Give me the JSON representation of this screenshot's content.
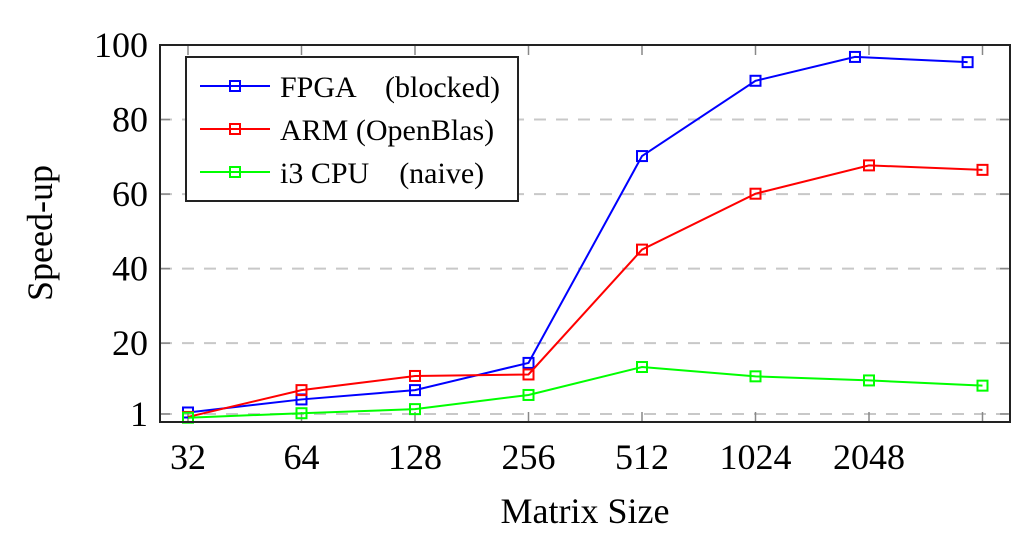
{
  "chart_data": {
    "type": "line",
    "title": "",
    "xlabel": "Matrix Size",
    "ylabel": "Speed-up",
    "x_scale": "log2",
    "x_ticks": [
      32,
      64,
      128,
      256,
      512,
      1024,
      2048,
      4096
    ],
    "x_tick_labels": [
      "32",
      "64",
      "128",
      "256",
      "512",
      "1024",
      "2048",
      ""
    ],
    "y_ticks": [
      1,
      20,
      40,
      60,
      80,
      100
    ],
    "y_tick_labels": [
      "1",
      "20",
      "40",
      "60",
      "80",
      "100"
    ],
    "ylim": [
      -1,
      100
    ],
    "xlim": [
      27,
      4900
    ],
    "grid": "horizontal dashed",
    "legend_position": "top-left",
    "series": [
      {
        "name": "FPGA    (blocked)",
        "color": "#0000ff",
        "marker": "square",
        "x": [
          32,
          64,
          128,
          256,
          512,
          1024,
          1880,
          3740
        ],
        "y": [
          1.4,
          4.9,
          7.4,
          14.7,
          70.2,
          90.4,
          96.8,
          95.4
        ]
      },
      {
        "name": "ARM (OpenBlas)",
        "color": "#ff0000",
        "marker": "square",
        "x": [
          32,
          64,
          128,
          256,
          512,
          1024,
          2048,
          4096
        ],
        "y": [
          0.2,
          7.4,
          11.2,
          11.6,
          45.1,
          60.1,
          67.7,
          66.5
        ]
      },
      {
        "name": "i3 CPU    (naive)",
        "color": "#00ff00",
        "marker": "square",
        "x": [
          32,
          64,
          128,
          256,
          512,
          1024,
          2048,
          4096
        ],
        "y": [
          0.0,
          1.2,
          2.3,
          6.1,
          13.6,
          11.1,
          10.0,
          8.6
        ]
      }
    ]
  }
}
